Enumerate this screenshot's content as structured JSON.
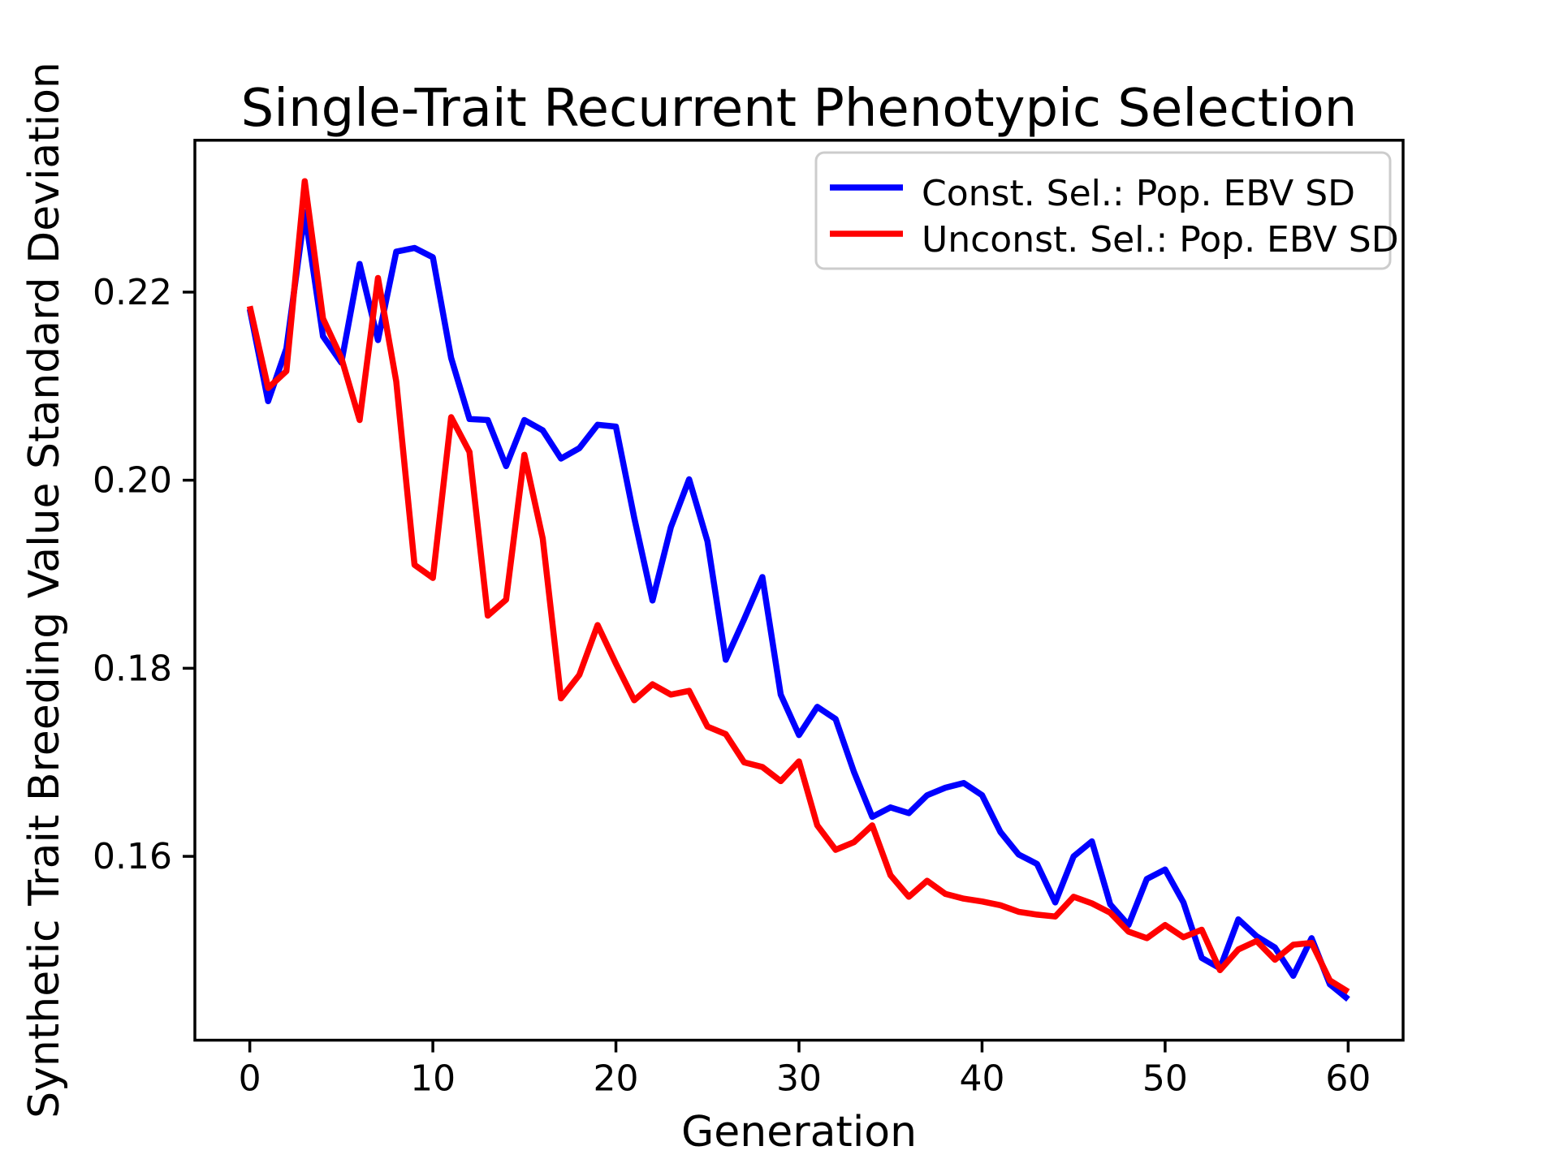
{
  "figure": {
    "title": "Single-Trait Recurrent Phenotypic Selection"
  },
  "chart_data": {
    "type": "line",
    "title": "Single-Trait Recurrent Phenotypic Selection",
    "xlabel": "Generation",
    "ylabel": "Synthetic Trait Breeding Value Standard Deviation",
    "xlim": [
      -3,
      63
    ],
    "ylim": [
      0.14045,
      0.23615
    ],
    "xticks": {
      "values": [
        0,
        10,
        20,
        30,
        40,
        50,
        60
      ],
      "labels": [
        "0",
        "10",
        "20",
        "30",
        "40",
        "50",
        "60"
      ]
    },
    "yticks": {
      "values": [
        0.16,
        0.18,
        0.2,
        0.22
      ],
      "labels": [
        "0.16",
        "0.18",
        "0.20",
        "0.22"
      ]
    },
    "grid": false,
    "legend": {
      "position": "upper right"
    },
    "x": [
      0,
      1,
      2,
      3,
      4,
      5,
      6,
      7,
      8,
      9,
      10,
      11,
      12,
      13,
      14,
      15,
      16,
      17,
      18,
      19,
      20,
      21,
      22,
      23,
      24,
      25,
      26,
      27,
      28,
      29,
      30,
      31,
      32,
      33,
      34,
      35,
      36,
      37,
      38,
      39,
      40,
      41,
      42,
      43,
      44,
      45,
      46,
      47,
      48,
      49,
      50,
      51,
      52,
      53,
      54,
      55,
      56,
      57,
      58,
      59,
      60
    ],
    "series": [
      {
        "name": "Const. Sel.: Pop. EBV SD",
        "color": "#0000FF",
        "values": [
          0.2182,
          0.2084,
          0.214,
          0.2285,
          0.2153,
          0.2125,
          0.223,
          0.2149,
          0.2243,
          0.2247,
          0.2237,
          0.213,
          0.2065,
          0.2064,
          0.2015,
          0.2064,
          0.2053,
          0.2023,
          0.2034,
          0.2059,
          0.2057,
          0.196,
          0.1872,
          0.195,
          0.2001,
          0.1935,
          0.1809,
          0.1852,
          0.1897,
          0.1772,
          0.1729,
          0.1759,
          0.1746,
          0.169,
          0.1642,
          0.1652,
          0.1646,
          0.1665,
          0.1673,
          0.1678,
          0.1665,
          0.1626,
          0.1602,
          0.1592,
          0.1551,
          0.16,
          0.1616,
          0.1549,
          0.1527,
          0.1576,
          0.1586,
          0.1551,
          0.1492,
          0.1481,
          0.1533,
          0.1515,
          0.1503,
          0.1473,
          0.1513,
          0.1464,
          0.1448
        ]
      },
      {
        "name": "Unconst. Sel.: Pop. EBV SD",
        "color": "#FF0000",
        "values": [
          0.2185,
          0.2098,
          0.2116,
          0.2318,
          0.2172,
          0.213,
          0.2064,
          0.2215,
          0.2105,
          0.191,
          0.1896,
          0.2067,
          0.203,
          0.1856,
          0.1873,
          0.2027,
          0.1938,
          0.1768,
          0.1793,
          0.1846,
          0.1805,
          0.1766,
          0.1783,
          0.1772,
          0.1776,
          0.1738,
          0.173,
          0.17,
          0.1695,
          0.168,
          0.1701,
          0.1633,
          0.1607,
          0.1615,
          0.1633,
          0.158,
          0.1557,
          0.1574,
          0.156,
          0.1555,
          0.1552,
          0.1548,
          0.1541,
          0.1538,
          0.1536,
          0.1557,
          0.155,
          0.154,
          0.152,
          0.1513,
          0.1527,
          0.1514,
          0.1522,
          0.1479,
          0.1501,
          0.151,
          0.149,
          0.1506,
          0.1508,
          0.1468,
          0.1456
        ]
      }
    ],
    "colors": {
      "axes": "#000000",
      "text": "#000000",
      "legend_border": "#CCCCCC",
      "background": "#FFFFFF"
    }
  }
}
